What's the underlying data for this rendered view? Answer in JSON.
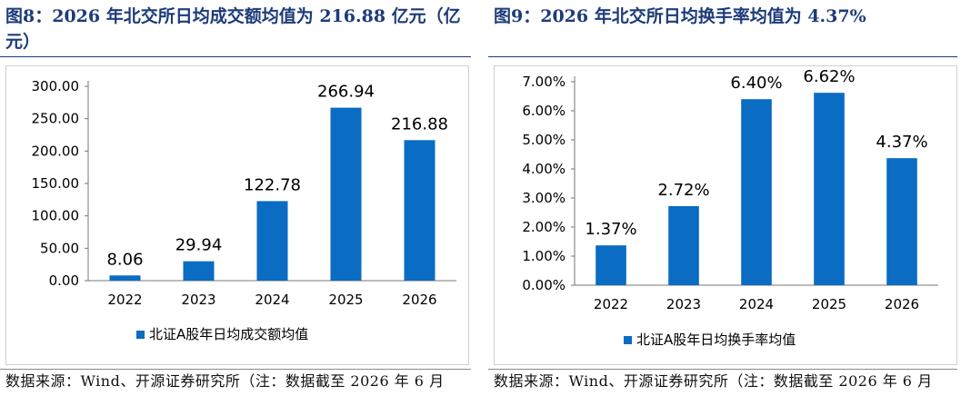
{
  "charts": [
    {
      "figure_title": "图8：2026 年北交所日均成交额均值为 216.88 亿元（亿元）",
      "source": "数据来源：Wind、开源证券研究所（注：数据截至 2026 年 6 月",
      "chart_data": {
        "type": "bar",
        "categories": [
          "2022",
          "2023",
          "2024",
          "2025",
          "2026"
        ],
        "series": [
          {
            "name": "北证A股年日均成交额均值",
            "values": [
              8.06,
              29.94,
              122.78,
              266.94,
              216.88
            ]
          }
        ],
        "data_labels": [
          "8.06",
          "29.94",
          "122.78",
          "266.94",
          "216.88"
        ],
        "y_ticks": [
          "0.00",
          "50.00",
          "100.00",
          "150.00",
          "200.00",
          "250.00",
          "300.00"
        ],
        "ylim": [
          0,
          300
        ],
        "bar_color": "#0a6cc2",
        "legend_position": "bottom"
      }
    },
    {
      "figure_title": "图9：2026 年北交所日均换手率均值为 4.37%",
      "source": "数据来源：Wind、开源证券研究所（注：数据截至 2026 年 6 月",
      "chart_data": {
        "type": "bar",
        "categories": [
          "2022",
          "2023",
          "2024",
          "2025",
          "2026"
        ],
        "series": [
          {
            "name": "北证A股年日均换手率均值",
            "values": [
              1.37,
              2.72,
              6.4,
              6.62,
              4.37
            ]
          }
        ],
        "data_labels": [
          "1.37%",
          "2.72%",
          "6.40%",
          "6.62%",
          "4.37%"
        ],
        "y_ticks": [
          "0.00%",
          "1.00%",
          "2.00%",
          "3.00%",
          "4.00%",
          "5.00%",
          "6.00%",
          "7.00%"
        ],
        "ylim": [
          0,
          7
        ],
        "bar_color": "#0a6cc2",
        "legend_position": "bottom"
      }
    }
  ]
}
